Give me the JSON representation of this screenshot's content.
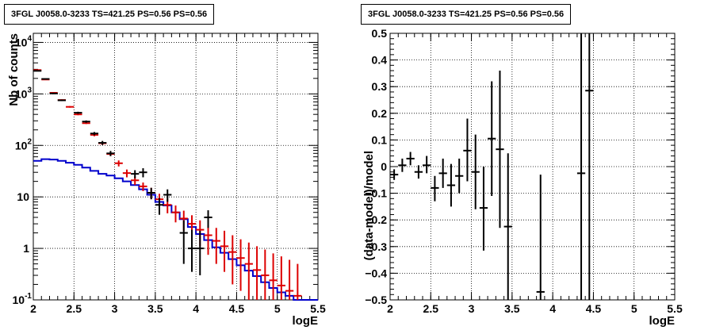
{
  "chart_data": [
    {
      "type": "histogram",
      "title": "3FGL J0058.0-3233 TS=421.25 PS=0.56 PS=0.56",
      "xlabel": "logE",
      "ylabel": "Nb of counts",
      "xlim": [
        2,
        5.5
      ],
      "ylim": [
        0.1,
        15000
      ],
      "yscale": "log",
      "grid": true,
      "x_ticks": [
        "2",
        "2.5",
        "3",
        "3.5",
        "4",
        "4.5",
        "5",
        "5.5"
      ],
      "y_ticks": [
        {
          "v": 0.1,
          "label": "10",
          "exp": "-1"
        },
        {
          "v": 1,
          "label": "1",
          "exp": ""
        },
        {
          "v": 10,
          "label": "10",
          "exp": ""
        },
        {
          "v": 100,
          "label": "10",
          "exp": "2"
        },
        {
          "v": 1000,
          "label": "10",
          "exp": "3"
        },
        {
          "v": 10000,
          "label": "10",
          "exp": "4"
        }
      ],
      "bin_width": 0.1,
      "series": [
        {
          "role": "data",
          "color": "#000000",
          "points": [
            [
              2.05,
              2800,
              2750,
              2850
            ],
            [
              2.15,
              1950,
              1910,
              1990
            ],
            [
              2.25,
              1020,
              990,
              1050
            ],
            [
              2.35,
              750,
              725,
              775
            ],
            [
              2.55,
              430,
              410,
              450
            ],
            [
              2.65,
              290,
              275,
              305
            ],
            [
              2.75,
              170,
              158,
              182
            ],
            [
              2.85,
              112,
              102,
              122
            ],
            [
              2.95,
              70,
              62,
              78
            ],
            [
              3.25,
              28,
              23,
              33
            ],
            [
              3.35,
              30,
              24,
              36
            ],
            [
              3.45,
              12,
              9,
              15
            ],
            [
              3.55,
              7,
              4.5,
              9.5
            ],
            [
              3.65,
              11,
              8,
              14
            ],
            [
              3.85,
              2,
              0.5,
              3.5
            ],
            [
              3.95,
              1,
              0.35,
              2.3
            ],
            [
              4.05,
              1,
              0.3,
              2.2
            ],
            [
              4.15,
              4,
              2.5,
              5.5
            ]
          ]
        },
        {
          "role": "model",
          "color": "#dd0000",
          "points": [
            [
              2.05,
              2900,
              2800,
              3000
            ],
            [
              2.15,
              1900,
              1850,
              1950
            ],
            [
              2.25,
              1050,
              1020,
              1080
            ],
            [
              2.35,
              760,
              735,
              785
            ],
            [
              2.45,
              560,
              540,
              580
            ],
            [
              2.55,
              400,
              385,
              415
            ],
            [
              2.65,
              270,
              260,
              280
            ],
            [
              2.75,
              160,
              150,
              170
            ],
            [
              2.85,
              110,
              102,
              118
            ],
            [
              2.95,
              68,
              62,
              74
            ],
            [
              3.05,
              45,
              39,
              51
            ],
            [
              3.15,
              29,
              24,
              34
            ],
            [
              3.25,
              21,
              17,
              25
            ],
            [
              3.35,
              16,
              13,
              19
            ],
            [
              3.45,
              12,
              9,
              15
            ],
            [
              3.55,
              9,
              6.5,
              11.5
            ],
            [
              3.65,
              7,
              4.8,
              9.2
            ],
            [
              3.75,
              5,
              3.2,
              6.8
            ],
            [
              3.85,
              3.8,
              2.2,
              5.4
            ],
            [
              3.95,
              3,
              1.6,
              4.4
            ],
            [
              4.05,
              2.3,
              1.1,
              3.5
            ],
            [
              4.15,
              1.8,
              0.75,
              2.85
            ],
            [
              4.25,
              1.4,
              0.5,
              2.5
            ],
            [
              4.35,
              1.1,
              0.35,
              2.2
            ],
            [
              4.45,
              0.85,
              0.2,
              1.8
            ],
            [
              4.55,
              0.65,
              0.15,
              1.5
            ],
            [
              4.65,
              0.5,
              0.1,
              1.3
            ],
            [
              4.75,
              0.38,
              0.1,
              1.1
            ],
            [
              4.85,
              0.3,
              0.1,
              0.95
            ],
            [
              4.95,
              0.24,
              0.1,
              0.8
            ],
            [
              5.05,
              0.19,
              0.1,
              0.7
            ],
            [
              5.15,
              0.15,
              0.1,
              0.6
            ],
            [
              5.25,
              0.12,
              0.1,
              0.5
            ]
          ]
        },
        {
          "role": "background",
          "color": "#0000cc",
          "bins": [
            [
              2.0,
              50
            ],
            [
              2.1,
              54
            ],
            [
              2.2,
              53
            ],
            [
              2.3,
              50
            ],
            [
              2.4,
              46
            ],
            [
              2.5,
              42
            ],
            [
              2.6,
              37
            ],
            [
              2.7,
              32
            ],
            [
              2.8,
              28
            ],
            [
              2.9,
              26
            ],
            [
              3.0,
              23
            ],
            [
              3.1,
              20
            ],
            [
              3.2,
              17
            ],
            [
              3.3,
              14
            ],
            [
              3.4,
              11
            ],
            [
              3.5,
              8
            ],
            [
              3.6,
              6.8
            ],
            [
              3.7,
              5
            ],
            [
              3.8,
              3.7
            ],
            [
              3.9,
              2.6
            ],
            [
              4.0,
              1.9
            ],
            [
              4.1,
              1.45
            ],
            [
              4.2,
              1.05
            ],
            [
              4.3,
              0.82
            ],
            [
              4.4,
              0.62
            ],
            [
              4.5,
              0.47
            ],
            [
              4.6,
              0.37
            ],
            [
              4.7,
              0.29
            ],
            [
              4.8,
              0.22
            ],
            [
              4.9,
              0.17
            ],
            [
              5.0,
              0.14
            ],
            [
              5.1,
              0.12
            ],
            [
              5.2,
              0.1
            ],
            [
              5.3,
              0.1
            ],
            [
              5.4,
              0.1
            ]
          ]
        }
      ]
    },
    {
      "type": "errorbar",
      "title": "3FGL J0058.0-3233 TS=421.25 PS=0.56 PS=0.56",
      "xlabel": "logE",
      "ylabel": "(data-model)/model",
      "xlim": [
        2,
        5.5
      ],
      "ylim": [
        -0.5,
        0.5
      ],
      "grid": true,
      "x_ticks": [
        "2",
        "2.5",
        "3",
        "3.5",
        "4",
        "4.5",
        "5",
        "5.5"
      ],
      "y_ticks": [
        "-0.5",
        "-0.4",
        "-0.3",
        "-0.2",
        "-0.1",
        "0",
        "0.1",
        "0.2",
        "0.3",
        "0.4",
        "0.5"
      ],
      "bin_width": 0.1,
      "series": [
        {
          "role": "residual",
          "color": "#000000",
          "points": [
            [
              2.05,
              -0.03,
              -0.05,
              -0.01
            ],
            [
              2.15,
              0.005,
              -0.02,
              0.03
            ],
            [
              2.25,
              0.03,
              0.005,
              0.055
            ],
            [
              2.35,
              -0.02,
              -0.045,
              0.005
            ],
            [
              2.45,
              0.005,
              -0.025,
              0.04
            ],
            [
              2.55,
              -0.08,
              -0.13,
              -0.035
            ],
            [
              2.65,
              -0.025,
              -0.08,
              0.03
            ],
            [
              2.75,
              -0.07,
              -0.15,
              0.01
            ],
            [
              2.85,
              -0.035,
              -0.1,
              0.03
            ],
            [
              2.95,
              0.06,
              -0.055,
              0.18
            ],
            [
              3.05,
              -0.02,
              -0.16,
              0.12
            ],
            [
              3.15,
              -0.155,
              -0.315,
              0.0
            ],
            [
              3.25,
              0.105,
              -0.11,
              0.32
            ],
            [
              3.35,
              0.065,
              -0.23,
              0.36
            ],
            [
              3.45,
              -0.225,
              -0.5,
              0.05
            ],
            [
              3.85,
              -0.47,
              -0.5,
              -0.03
            ],
            [
              4.35,
              -0.025,
              -0.5,
              0.5
            ],
            [
              4.45,
              0.285,
              -0.5,
              0.5
            ]
          ]
        }
      ]
    }
  ]
}
